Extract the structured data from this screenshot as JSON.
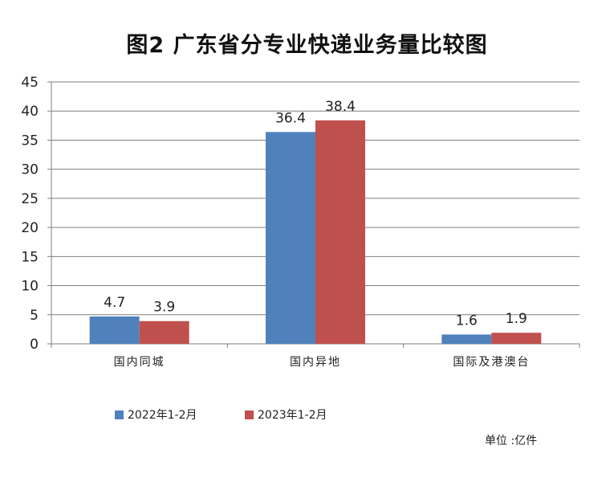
{
  "chart_data": {
    "type": "bar",
    "title": "图2 广东省分专业快递业务量比较图",
    "categories": [
      "国内同城",
      "国内异地",
      "国际及港澳台"
    ],
    "series": [
      {
        "name": "2022年1-2月",
        "values": [
          4.7,
          36.4,
          1.6
        ],
        "color": "#4F81BD"
      },
      {
        "name": "2023年1-2月",
        "values": [
          3.9,
          38.4,
          1.9
        ],
        "color": "#C0504D"
      }
    ],
    "ylim": [
      0,
      45
    ],
    "yticks": [
      0,
      5,
      10,
      15,
      20,
      25,
      30,
      35,
      40,
      45
    ],
    "grid": true,
    "legend_position": "bottom-left",
    "unit_note": "单位 :亿件"
  }
}
